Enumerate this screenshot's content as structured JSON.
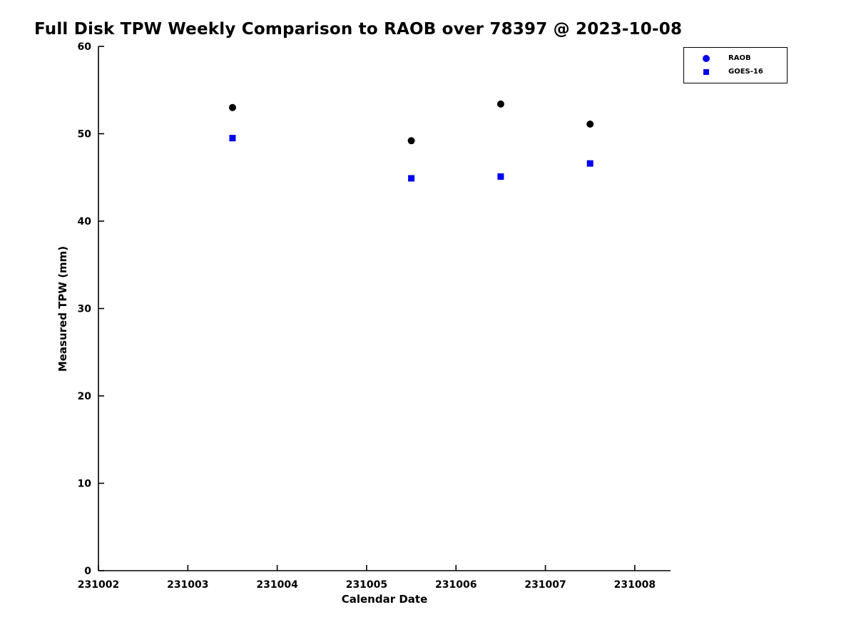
{
  "chart_data": {
    "type": "scatter",
    "title": "Full Disk TPW Weekly Comparison to RAOB over 78397 @ 2023-10-08",
    "xlabel": "Calendar Date",
    "ylabel": "Measured TPW (mm)",
    "xlim": [
      231002,
      231008.4
    ],
    "ylim": [
      0,
      60
    ],
    "xticks": [
      231002,
      231003,
      231004,
      231005,
      231006,
      231007,
      231008
    ],
    "yticks": [
      0,
      10,
      20,
      30,
      40,
      50,
      60
    ],
    "grid": false,
    "axis_color": "#000000",
    "legend": {
      "position": "top-right",
      "entries": [
        {
          "label": "RAOB",
          "marker": "circle",
          "color": "#0000EE"
        },
        {
          "label": "GOES-16",
          "marker": "square",
          "color": "#0000EE"
        }
      ]
    },
    "series": [
      {
        "name": "RAOB",
        "marker": "circle",
        "color": "#000000",
        "x": [
          231003.5,
          231005.5,
          231006.5,
          231007.5
        ],
        "y": [
          53.0,
          49.2,
          53.4,
          51.1
        ]
      },
      {
        "name": "GOES-16",
        "marker": "square",
        "color": "#0000EE",
        "x": [
          231003.5,
          231005.5,
          231006.5,
          231007.5
        ],
        "y": [
          49.5,
          44.9,
          45.1,
          46.6
        ]
      }
    ]
  }
}
